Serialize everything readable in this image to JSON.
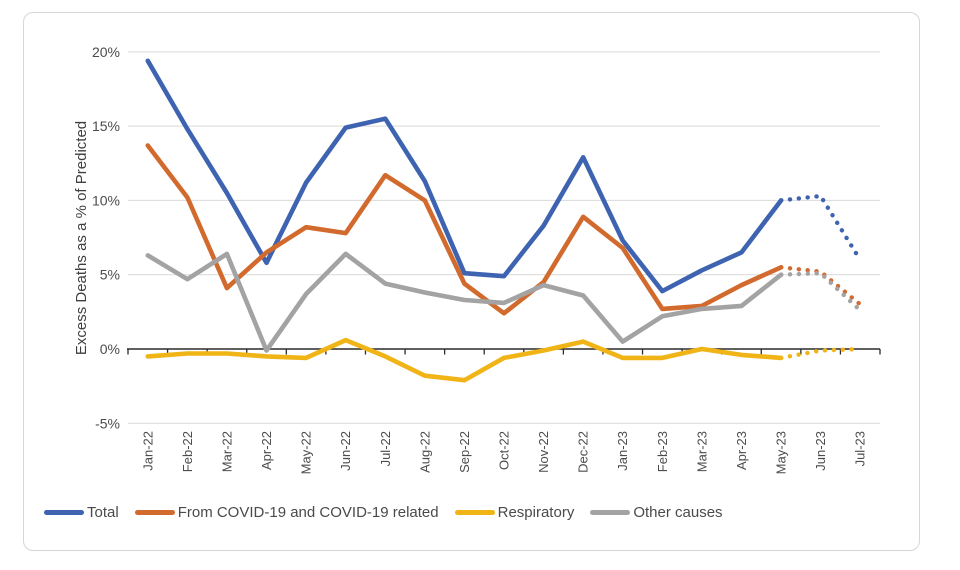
{
  "chart_data": {
    "type": "line",
    "title": "",
    "xlabel": "",
    "ylabel": "Excess Deaths as a % of Predicted",
    "ylim": [
      -5,
      20
    ],
    "yticks": [
      {
        "value": 20,
        "label": "20%"
      },
      {
        "value": 15,
        "label": "15%"
      },
      {
        "value": 10,
        "label": "10%"
      },
      {
        "value": 5,
        "label": "5%"
      },
      {
        "value": 0,
        "label": "0%"
      },
      {
        "value": -5,
        "label": "-5%"
      }
    ],
    "grid": true,
    "legend_position": "bottom",
    "x_label_rotation": -90,
    "categories": [
      "Jan-22",
      "Feb-22",
      "Mar-22",
      "Apr-22",
      "May-22",
      "Jun-22",
      "Jul-22",
      "Aug-22",
      "Sep-22",
      "Oct-22",
      "Nov-22",
      "Dec-22",
      "Jan-23",
      "Feb-23",
      "Mar-23",
      "Apr-23",
      "May-23",
      "Jun-23",
      "Jul-23"
    ],
    "solid_through": "May-23",
    "projection_style": "dotted",
    "series": [
      {
        "name": "Total",
        "color": "#3e63b0",
        "values": [
          19.4,
          14.8,
          10.5,
          5.8,
          11.2,
          14.9,
          15.5,
          11.3,
          5.1,
          4.9,
          8.3,
          12.9,
          7.3,
          3.9,
          5.3,
          6.5,
          10.0,
          10.3,
          6.0
        ]
      },
      {
        "name": "From COVID-19 and COVID-19 related",
        "color": "#d26a2e",
        "values": [
          13.7,
          10.2,
          4.1,
          6.5,
          8.2,
          7.8,
          11.7,
          10.0,
          4.4,
          2.4,
          4.5,
          8.9,
          6.8,
          2.7,
          2.9,
          4.3,
          5.5,
          5.2,
          3.0
        ]
      },
      {
        "name": "Respiratory",
        "color": "#f0b417",
        "values": [
          -0.5,
          -0.3,
          -0.3,
          -0.5,
          -0.6,
          0.6,
          -0.5,
          -1.8,
          -2.1,
          -0.6,
          -0.1,
          0.5,
          -0.6,
          -0.6,
          0.0,
          -0.4,
          -0.6,
          -0.1,
          0.0
        ]
      },
      {
        "name": "Other causes",
        "color": "#a3a3a3",
        "values": [
          6.3,
          4.7,
          6.4,
          -0.1,
          3.7,
          6.4,
          4.4,
          3.8,
          3.3,
          3.1,
          4.3,
          3.6,
          0.5,
          2.2,
          2.7,
          2.9,
          5.0,
          5.1,
          2.6
        ]
      }
    ],
    "colors": {
      "gridline": "#d9d9d9",
      "axis_line": "#2b2b2b",
      "tick_label": "#4c4c4c",
      "axis_title": "#3f3f3f",
      "frame_border": "#d8d5d5"
    }
  }
}
